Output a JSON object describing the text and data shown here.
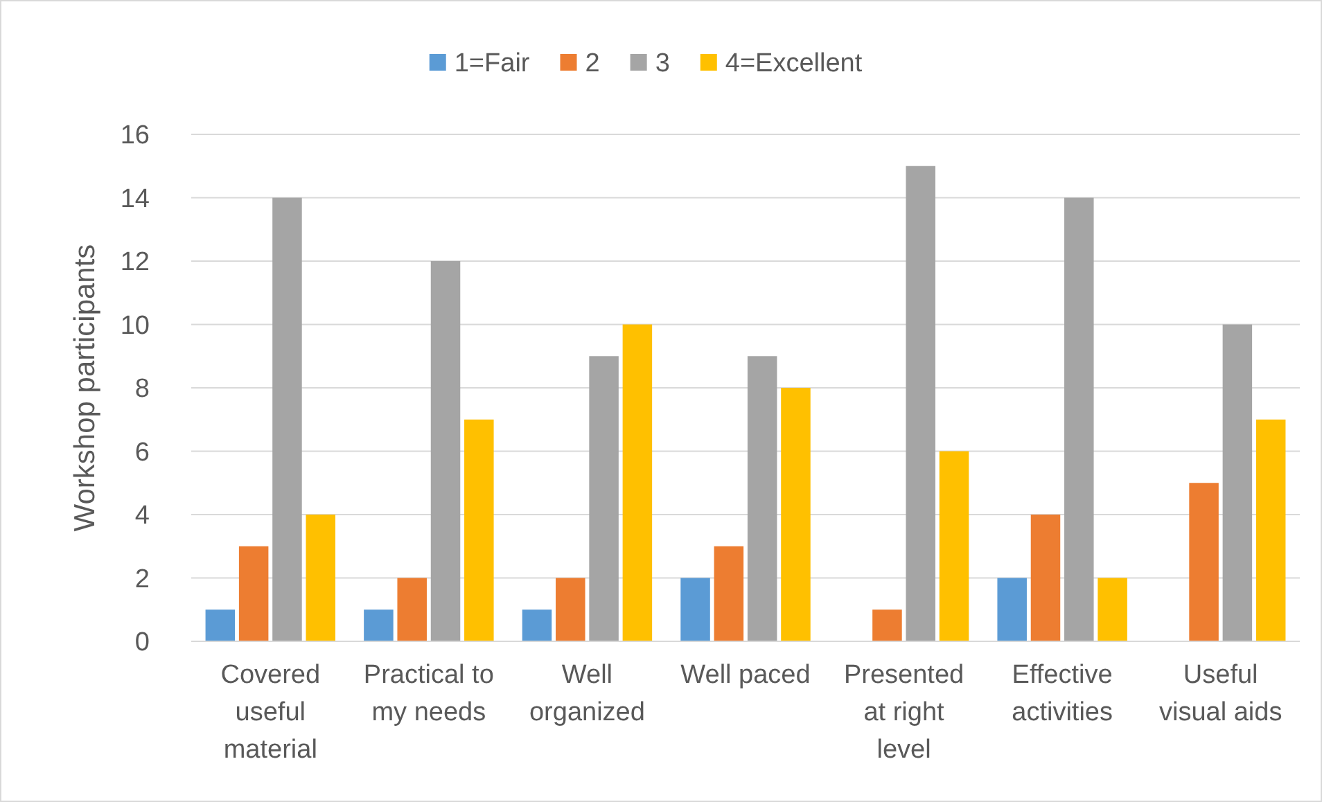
{
  "chart_data": {
    "type": "bar",
    "ylabel": "Workshop participants",
    "categories": [
      "Covered useful material",
      "Practical to my needs",
      "Well organized",
      "Well paced",
      "Presented at right level",
      "Effective activities",
      "Useful visual aids"
    ],
    "series": [
      {
        "name": "1=Fair",
        "color": "#5b9bd5",
        "values": [
          1,
          1,
          1,
          2,
          0,
          2,
          0
        ]
      },
      {
        "name": "2",
        "color": "#ed7d31",
        "values": [
          3,
          2,
          2,
          3,
          1,
          4,
          5
        ]
      },
      {
        "name": "3",
        "color": "#a5a5a5",
        "values": [
          14,
          12,
          9,
          9,
          15,
          14,
          10
        ]
      },
      {
        "name": "4=Excellent",
        "color": "#ffc000",
        "values": [
          4,
          7,
          10,
          8,
          6,
          2,
          7
        ]
      }
    ],
    "ylim": [
      0,
      16
    ],
    "yticks": [
      0,
      2,
      4,
      6,
      8,
      10,
      12,
      14,
      16
    ],
    "grid": "y",
    "legend": "top"
  }
}
